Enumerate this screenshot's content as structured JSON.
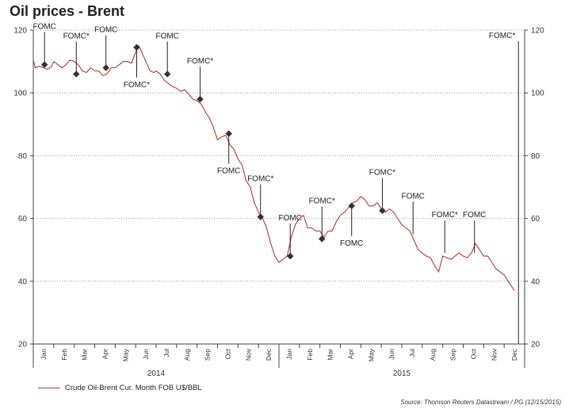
{
  "chart_data": {
    "type": "line",
    "title": "Oil prices - Brent",
    "ylim": [
      20,
      120
    ],
    "yticks": [
      20,
      40,
      60,
      80,
      100,
      120
    ],
    "grid": "horizontal-dotted",
    "y_axis_both_sides": true,
    "month_labels": [
      "Jan",
      "Feb",
      "Mar",
      "Apr",
      "May",
      "Jun",
      "Jul",
      "Aug",
      "Sep",
      "Oct",
      "Nov",
      "Dec",
      "Jan",
      "Feb",
      "Mar",
      "Apr",
      "May",
      "Jun",
      "Jul",
      "Aug",
      "Sep",
      "Oct",
      "Nov",
      "Dec"
    ],
    "year_labels": [
      {
        "label": "2014",
        "month_index": 6
      },
      {
        "label": "2015",
        "month_index": 18
      }
    ],
    "series": [
      {
        "name": "Crude Oil-Brent Cur. Month FOB U$/BBL",
        "color": "#b03a3a",
        "points": [
          [
            0.0,
            110.5
          ],
          [
            0.1,
            108
          ],
          [
            0.3,
            108.5
          ],
          [
            0.5,
            108
          ],
          [
            0.7,
            107.5
          ],
          [
            0.9,
            108.5
          ],
          [
            1.0,
            110
          ],
          [
            1.2,
            109
          ],
          [
            1.4,
            108
          ],
          [
            1.6,
            109
          ],
          [
            1.8,
            110.5
          ],
          [
            2.0,
            110
          ],
          [
            2.2,
            109
          ],
          [
            2.4,
            107
          ],
          [
            2.6,
            106.5
          ],
          [
            2.8,
            108
          ],
          [
            3.0,
            107
          ],
          [
            3.2,
            107
          ],
          [
            3.4,
            105.5
          ],
          [
            3.6,
            106
          ],
          [
            3.8,
            108
          ],
          [
            4.0,
            108
          ],
          [
            4.2,
            109
          ],
          [
            4.4,
            110
          ],
          [
            4.6,
            110
          ],
          [
            4.8,
            109.5
          ],
          [
            5.0,
            113
          ],
          [
            5.15,
            115
          ],
          [
            5.3,
            113
          ],
          [
            5.5,
            110
          ],
          [
            5.7,
            107
          ],
          [
            5.9,
            106.5
          ],
          [
            6.0,
            107
          ],
          [
            6.2,
            106
          ],
          [
            6.4,
            104
          ],
          [
            6.6,
            103
          ],
          [
            6.8,
            102
          ],
          [
            7.0,
            101.5
          ],
          [
            7.2,
            100.5
          ],
          [
            7.4,
            101
          ],
          [
            7.6,
            99.5
          ],
          [
            7.8,
            98
          ],
          [
            8.0,
            97.5
          ],
          [
            8.2,
            96.5
          ],
          [
            8.4,
            94
          ],
          [
            8.6,
            92
          ],
          [
            8.8,
            89
          ],
          [
            9.0,
            85
          ],
          [
            9.2,
            86
          ],
          [
            9.4,
            86.5
          ],
          [
            9.6,
            83.5
          ],
          [
            9.8,
            82
          ],
          [
            10.0,
            79
          ],
          [
            10.2,
            77
          ],
          [
            10.4,
            72
          ],
          [
            10.6,
            70
          ],
          [
            10.8,
            65
          ],
          [
            11.0,
            62
          ],
          [
            11.2,
            60
          ],
          [
            11.4,
            57
          ],
          [
            11.6,
            52
          ],
          [
            11.8,
            48
          ],
          [
            12.0,
            46
          ],
          [
            12.2,
            47
          ],
          [
            12.4,
            48
          ],
          [
            12.6,
            54
          ],
          [
            12.8,
            58
          ],
          [
            13.0,
            60
          ],
          [
            13.2,
            61
          ],
          [
            13.4,
            57
          ],
          [
            13.6,
            57
          ],
          [
            13.8,
            56
          ],
          [
            14.0,
            56
          ],
          [
            14.2,
            54
          ],
          [
            14.4,
            56
          ],
          [
            14.6,
            56
          ],
          [
            14.8,
            59
          ],
          [
            15.0,
            61
          ],
          [
            15.2,
            62
          ],
          [
            15.4,
            63.5
          ],
          [
            15.6,
            65
          ],
          [
            15.8,
            65.5
          ],
          [
            16.0,
            67
          ],
          [
            16.2,
            66
          ],
          [
            16.4,
            64
          ],
          [
            16.6,
            64
          ],
          [
            16.8,
            65
          ],
          [
            17.0,
            63
          ],
          [
            17.2,
            62
          ],
          [
            17.4,
            63
          ],
          [
            17.6,
            62
          ],
          [
            17.8,
            60
          ],
          [
            18.0,
            58
          ],
          [
            18.2,
            57
          ],
          [
            18.4,
            56
          ],
          [
            18.6,
            53
          ],
          [
            18.8,
            50
          ],
          [
            19.0,
            49
          ],
          [
            19.2,
            48
          ],
          [
            19.4,
            47.5
          ],
          [
            19.6,
            45
          ],
          [
            19.8,
            43
          ],
          [
            20.0,
            48
          ],
          [
            20.2,
            47.5
          ],
          [
            20.4,
            47
          ],
          [
            20.6,
            48
          ],
          [
            20.8,
            49
          ],
          [
            21.0,
            48
          ],
          [
            21.2,
            47.5
          ],
          [
            21.4,
            49
          ],
          [
            21.6,
            52
          ],
          [
            21.8,
            50
          ],
          [
            22.0,
            48
          ],
          [
            22.2,
            48
          ],
          [
            22.4,
            46
          ],
          [
            22.6,
            44
          ],
          [
            22.8,
            43
          ],
          [
            23.0,
            42
          ],
          [
            23.2,
            40
          ],
          [
            23.4,
            38
          ],
          [
            23.5,
            37
          ]
        ]
      }
    ],
    "annotations": [
      {
        "label": "FOMC",
        "x": 0.55,
        "y": 109,
        "label_above": true
      },
      {
        "label": "FOMC*",
        "x": 2.1,
        "y": 106,
        "label_above": true
      },
      {
        "label": "FOMC",
        "x": 3.55,
        "y": 108,
        "label_above": true
      },
      {
        "label": "FOMC*",
        "x": 5.05,
        "y": 114.5,
        "label_above": false
      },
      {
        "label": "FOMC",
        "x": 6.55,
        "y": 106,
        "label_above": true
      },
      {
        "label": "FOMC*",
        "x": 8.15,
        "y": 98,
        "label_above": true
      },
      {
        "label": "FOMC",
        "x": 9.55,
        "y": 87,
        "label_above": false
      },
      {
        "label": "FOMC*",
        "x": 11.1,
        "y": 60.5,
        "label_above": true
      },
      {
        "label": "FOMC",
        "x": 12.55,
        "y": 48,
        "label_above": true
      },
      {
        "label": "FOMC*",
        "x": 14.1,
        "y": 53.5,
        "label_above": true
      },
      {
        "label": "FOMC",
        "x": 15.55,
        "y": 64,
        "label_above": false
      },
      {
        "label": "FOMC*",
        "x": 17.05,
        "y": 62.5,
        "label_above": true
      },
      {
        "label": "FOMC",
        "x": 18.55,
        "y": 55,
        "label_above": true,
        "no_marker": true
      },
      {
        "label": "FOMC*",
        "x": 20.1,
        "y": 49,
        "label_above": true,
        "no_marker": true
      },
      {
        "label": "FOMC",
        "x": 21.55,
        "y": 49,
        "label_above": true,
        "no_marker": true
      },
      {
        "label": "FOMC*",
        "x": 23.7,
        "y": 20,
        "label_above": true,
        "no_marker": true
      }
    ]
  },
  "legend": {
    "label": "Crude Oil-Brent Cur. Month FOB U$/BBL",
    "color": "#b03a3a"
  },
  "source": "Source: Thomson Reuters Datastream / PG (12/15/2015)"
}
